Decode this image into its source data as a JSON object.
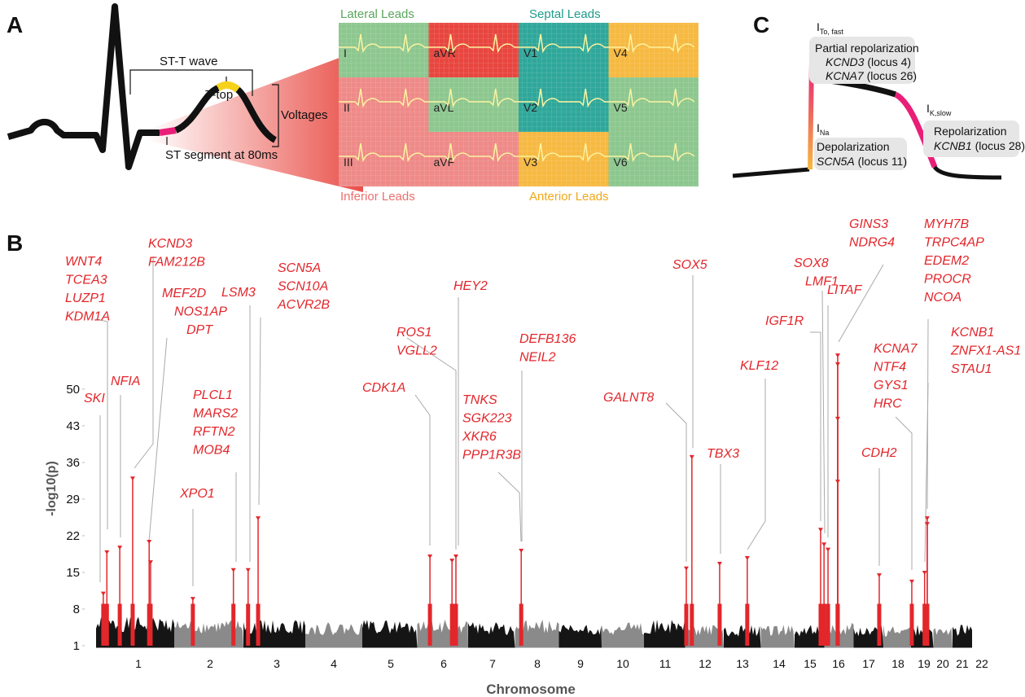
{
  "panel_a": {
    "letter": "A",
    "st_t_wave": "ST-T wave",
    "t_top": "T-top",
    "voltages": "Voltages",
    "st_segment": "ST segment at 80ms",
    "lead_groups": [
      "Lateral Leads",
      "Septal Leads",
      "Inferior Leads",
      "Anterior Leads"
    ],
    "leads": [
      {
        "name": "I",
        "color": "#8dc78f"
      },
      {
        "name": "aVR",
        "color": "#e8463f"
      },
      {
        "name": "V1",
        "color": "#2fa79a"
      },
      {
        "name": "V4",
        "color": "#f6b942"
      },
      {
        "name": "II",
        "color": "#ee8a88"
      },
      {
        "name": "aVL",
        "color": "#8dc78f"
      },
      {
        "name": "V2",
        "color": "#2fa79a"
      },
      {
        "name": "V5",
        "color": "#8dc78f"
      },
      {
        "name": "III",
        "color": "#ee8a88"
      },
      {
        "name": "aVF",
        "color": "#ee8a88"
      },
      {
        "name": "V3",
        "color": "#f6b942"
      },
      {
        "name": "V6",
        "color": "#8dc78f"
      }
    ]
  },
  "panel_c": {
    "letter": "C",
    "ito": {
      "symbol": "I",
      "subscript": "To, fast"
    },
    "partial": "Partial repolarization",
    "kcnd3": {
      "gene": "KCND3",
      "locus": "(locus 4)"
    },
    "kcna7": {
      "gene": "KCNA7",
      "locus": "(locus 26)"
    },
    "ina": {
      "symbol": "I",
      "subscript": "Na"
    },
    "depol": "Depolarization",
    "scn5a": {
      "gene": "SCN5A",
      "locus": "(locus 11)"
    },
    "iks": {
      "symbol": "I",
      "subscript": "K,slow"
    },
    "repol": "Repolarization",
    "kcnb1": {
      "gene": "KCNB1",
      "locus": "(locus 28)"
    }
  },
  "panel_b": {
    "letter": "B"
  },
  "chart_data": {
    "type": "scatter",
    "x_label": "Chromosome",
    "y_label": "-log10(p)",
    "xlim": [
      0.5,
      22.5
    ],
    "xticks": [
      1,
      2,
      3,
      4,
      5,
      6,
      7,
      8,
      9,
      10,
      11,
      12,
      13,
      14,
      15,
      16,
      17,
      18,
      19,
      20,
      21,
      22
    ],
    "ylim": [
      0,
      60
    ],
    "yticks": [
      1,
      8,
      15,
      22,
      29,
      36,
      43,
      50
    ],
    "background": {
      "colors": [
        "#151515",
        "#8a8a8a"
      ],
      "values": [
        6.5,
        6,
        6,
        5.5,
        6,
        6,
        5.5,
        6,
        5,
        5.5,
        6,
        5,
        5,
        5,
        5,
        5.5,
        5,
        5,
        5,
        5,
        5,
        5
      ]
    },
    "x": [
      0.51,
      0.56,
      0.74,
      0.92,
      1.15,
      1.17,
      1.76,
      2.35,
      2.57,
      2.72,
      5.74,
      6.17,
      6.25,
      7.64,
      11.53,
      11.67,
      12.39,
      13.13,
      15.37,
      15.49,
      15.63,
      15.97,
      15.97,
      15.97,
      15.97,
      17.36,
      18.53,
      19.03,
      19.17,
      19.17
    ],
    "series": [
      {
        "color": "#e3262b",
        "values": [
          11,
          18.9,
          19.8,
          33,
          20.9,
          17,
          10,
          15.5,
          15.5,
          25.4,
          18.1,
          17.3,
          18.1,
          19.2,
          15.8,
          37.1,
          16.7,
          17.8,
          23.2,
          20.4,
          19.4,
          56.5,
          54.8,
          44.4,
          32.4,
          14.5,
          13.3,
          15,
          25.4,
          24.3
        ]
      }
    ],
    "annotations": [
      [
        "WNT4",
        "TCEA3",
        "LUZP1",
        "KDM1A"
      ],
      [
        "SKI"
      ],
      [
        "NFIA"
      ],
      [
        "KCND3",
        "FAM212B"
      ],
      [
        "MEF2D",
        "NOS1AP",
        "DPT"
      ],
      [
        "PLCL1",
        "MARS2",
        "RFTN2",
        "MOB4"
      ],
      [
        "XPO1"
      ],
      [
        "LSM3"
      ],
      [
        "SCN5A",
        "SCN10A",
        "ACVR2B"
      ],
      [
        "ROS1",
        "VGLL2"
      ],
      [
        "CDK1A"
      ],
      [
        "HEY2"
      ],
      [
        "TNKS",
        "SGK223",
        "XKR6",
        "PPP1R3B"
      ],
      [
        "DEFB136",
        "NEIL2"
      ],
      [
        "GALNT8"
      ],
      [
        "SOX5"
      ],
      [
        "TBX3"
      ],
      [
        "KLF12"
      ],
      [
        "IGF1R"
      ],
      [
        "SOX8",
        "LMF1"
      ],
      [
        "LITAF"
      ],
      [
        "GINS3",
        "NDRG4"
      ],
      [
        "MYH7B",
        "TRPC4AP",
        "EDEM2",
        "PROCR",
        "NCOA"
      ],
      [
        "KCNA7",
        "NTF4",
        "GYS1",
        "HRC"
      ],
      [
        "CDH2"
      ],
      [
        "KCNB1",
        "ZNFX1-AS1",
        "STAU1"
      ]
    ]
  }
}
